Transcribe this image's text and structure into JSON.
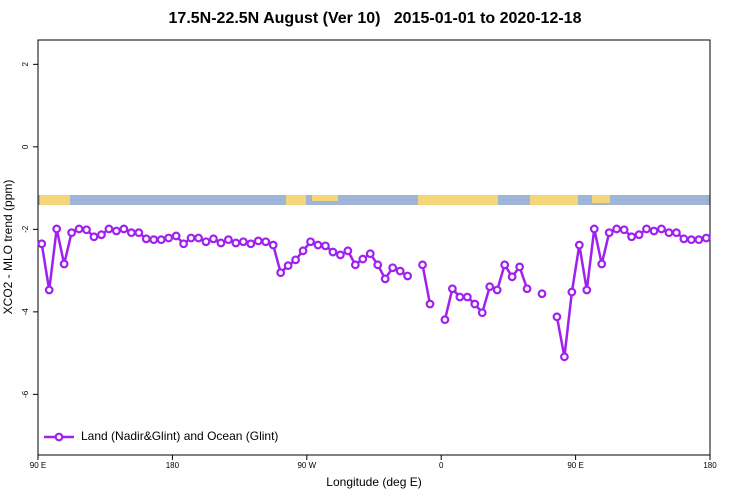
{
  "chart_data": {
    "type": "line",
    "title": "17.5N-22.5N August (Ver 10)   2015-01-01 to 2020-12-18",
    "x_label": "Longitude (deg E)",
    "y_label": "XCO2 - MLO trend (ppm)",
    "x": [
      92.5,
      97.5,
      102.5,
      107.5,
      112.5,
      117.5,
      122.5,
      127.5,
      132.5,
      137.5,
      142.5,
      147.5,
      152.5,
      157.5,
      162.5,
      167.5,
      172.5,
      177.5,
      182.5,
      187.5,
      192.5,
      197.5,
      202.5,
      207.5,
      212.5,
      217.5,
      222.5,
      227.5,
      232.5,
      237.5,
      242.5,
      247.5,
      252.5,
      257.5,
      262.5,
      267.5,
      272.5,
      277.5,
      282.5,
      287.5,
      292.5,
      297.5,
      302.5,
      307.5,
      312.5,
      317.5,
      322.5,
      327.5,
      332.5,
      337.5,
      342.5,
      347.5,
      352.5,
      357.5,
      362.5,
      367.5,
      372.5,
      377.5,
      382.5,
      387.5,
      392.5,
      397.5,
      402.5,
      407.5,
      412.5,
      417.5,
      422.5,
      427.5,
      432.5,
      437.5,
      442.5,
      447.5,
      452.5,
      457.5,
      462.5,
      467.5,
      472.5,
      477.5,
      482.5,
      487.5,
      492.5,
      497.5,
      502.5,
      507.5,
      512.5,
      517.5,
      522.5,
      527.5,
      532.5,
      537.5
    ],
    "series": [
      {
        "name": "Land (Nadir&Glint) and Ocean (Glint)",
        "color": "#a020f0",
        "values": [
          -2.35,
          -3.47,
          -1.99,
          -2.84,
          -2.08,
          -1.99,
          -2.01,
          -2.18,
          -2.13,
          -1.99,
          -2.04,
          -1.99,
          -2.08,
          -2.08,
          -2.23,
          -2.25,
          -2.25,
          -2.21,
          -2.16,
          -2.35,
          -2.21,
          -2.21,
          -2.3,
          -2.23,
          -2.33,
          -2.25,
          -2.33,
          -2.3,
          -2.35,
          -2.28,
          -2.3,
          -2.38,
          -3.05,
          -2.88,
          -2.74,
          -2.52,
          -2.3,
          -2.38,
          -2.4,
          -2.55,
          -2.62,
          -2.52,
          -2.86,
          -2.72,
          -2.59,
          -2.86,
          -3.2,
          -2.93,
          -3.01,
          -3.13,
          null,
          -2.86,
          -3.81,
          null,
          -4.19,
          -3.44,
          -3.64,
          -3.64,
          -3.81,
          -4.02,
          -3.39,
          -3.47,
          -2.86,
          -3.15,
          -2.91,
          -3.44,
          null,
          -3.56,
          null,
          -4.12,
          -5.09,
          -3.52,
          -2.38,
          -3.47,
          -1.99,
          -2.84,
          -2.08,
          -1.99,
          -2.01,
          -2.18,
          -2.13,
          -1.99,
          -2.04,
          -1.99,
          -2.08,
          -2.08,
          -2.23,
          -2.25,
          -2.25,
          -2.21
        ]
      }
    ],
    "xlim": [
      90,
      540
    ],
    "xticks": [
      {
        "value": 90,
        "label": "90 E"
      },
      180,
      {
        "value": 270,
        "label": "90 W"
      },
      {
        "value": 360,
        "label": "0"
      },
      {
        "value": 450,
        "label": "90 E"
      },
      {
        "value": 540,
        "label": "180"
      }
    ],
    "ylim": [
      -7.47,
      2.59
    ],
    "yticks": [
      2,
      0,
      -2,
      -4,
      -6
    ],
    "legend": "bottom-left"
  }
}
